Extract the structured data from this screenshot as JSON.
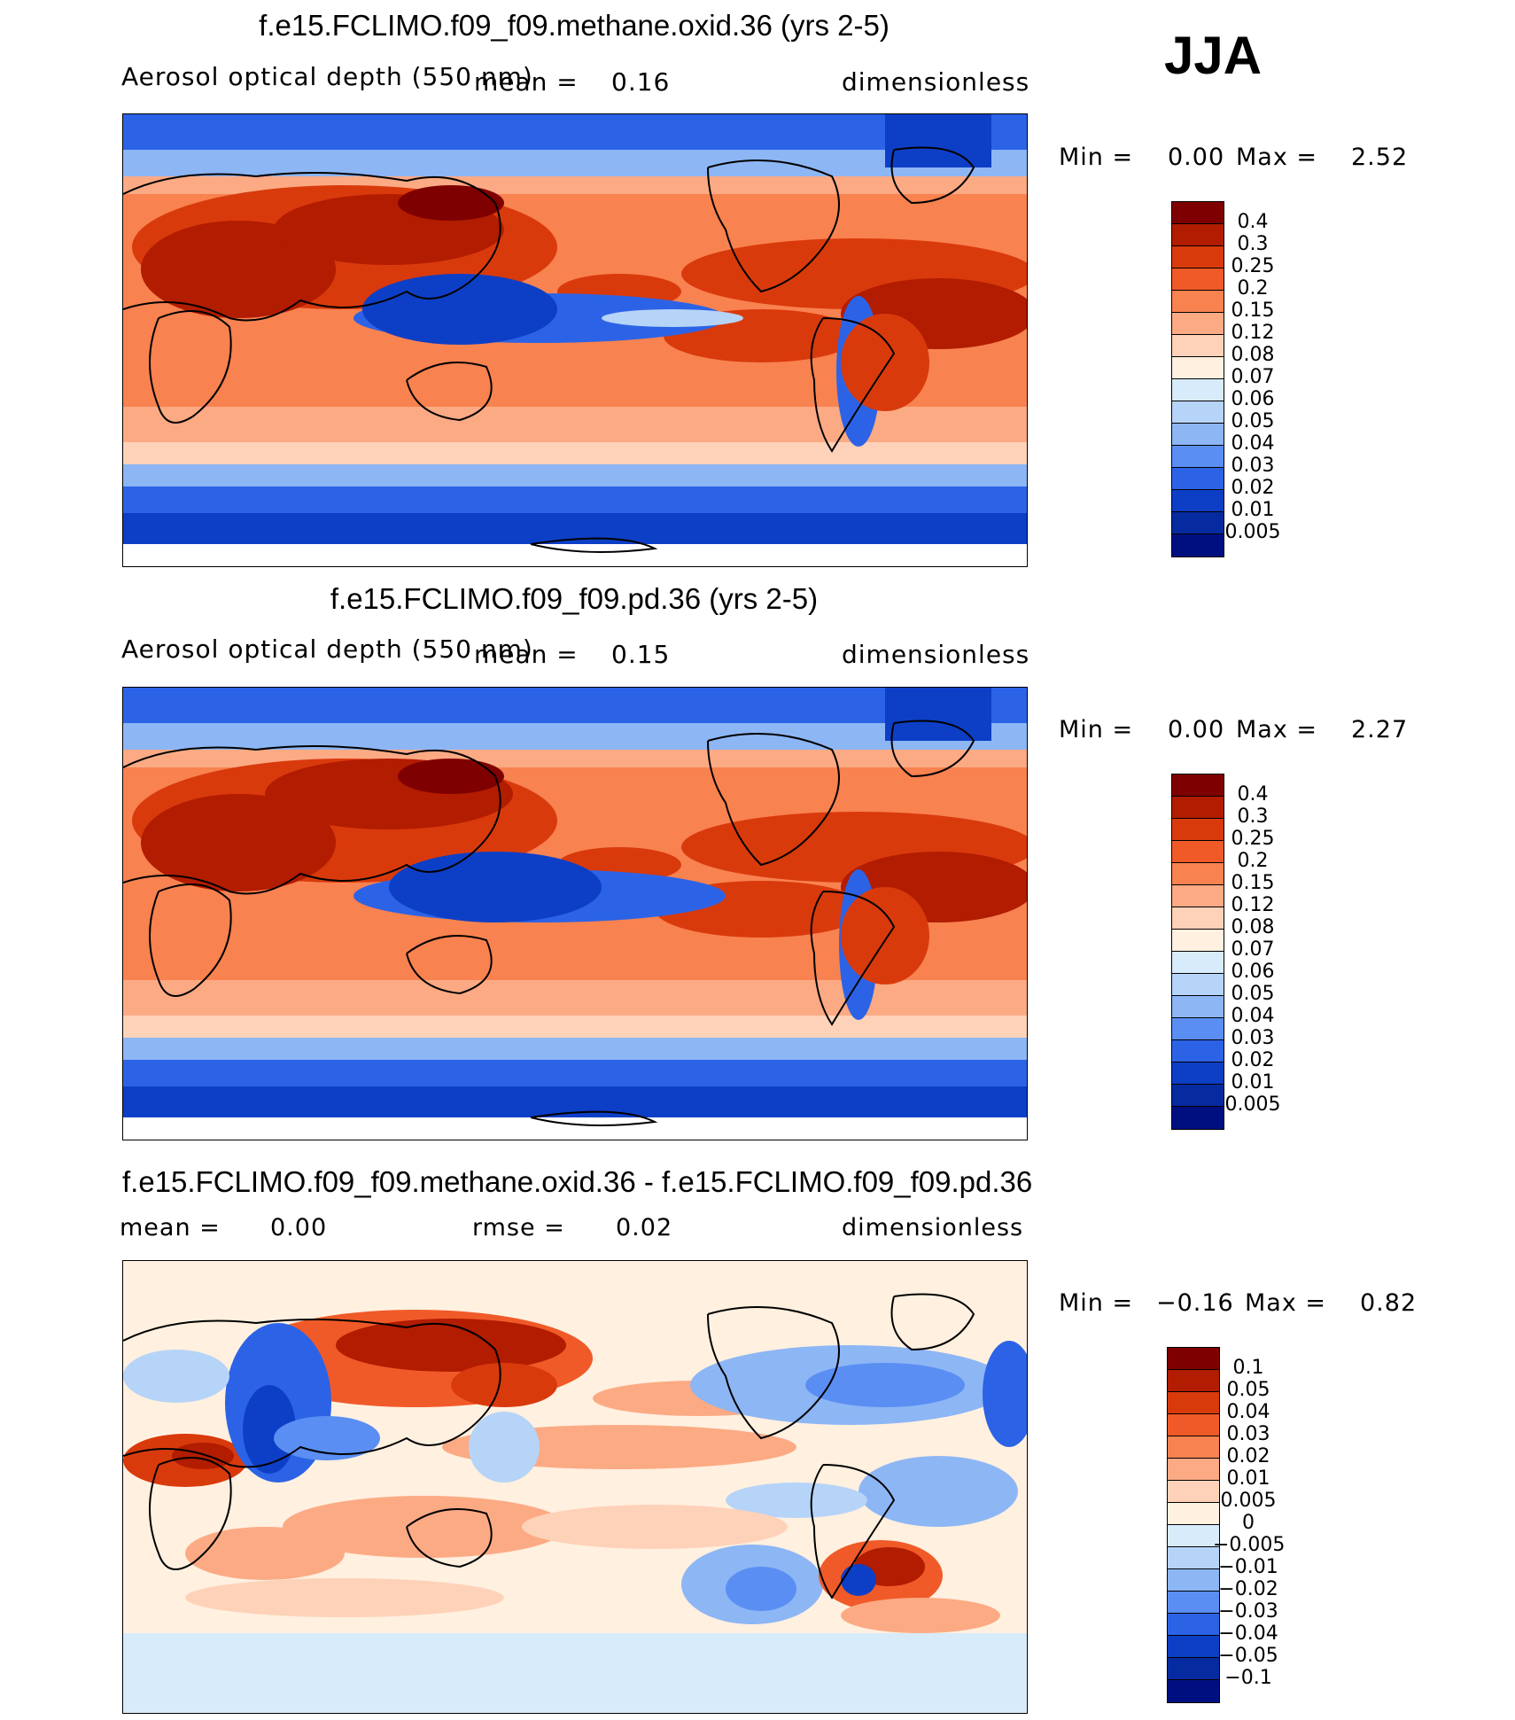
{
  "season": "JJA",
  "panels": [
    {
      "title": "f.e15.FCLIMO.f09_f09.methane.oxid.36 (yrs 2-5)",
      "variable": "Aerosol optical depth (550 nm)",
      "mean_label": "mean =",
      "mean_value": "0.16",
      "units": "dimensionless",
      "min_label": "Min =",
      "min_value": "0.00",
      "max_label": "Max =",
      "max_value": "2.52",
      "colorbar": [
        "0.4",
        "0.3",
        "0.25",
        "0.2",
        "0.15",
        "0.12",
        "0.08",
        "0.07",
        "0.06",
        "0.05",
        "0.04",
        "0.03",
        "0.02",
        "0.01",
        "0.005"
      ],
      "colors": [
        "#7f0000",
        "#b21c00",
        "#d93a0c",
        "#f05a28",
        "#f88250",
        "#fcaa84",
        "#fed2b8",
        "#fff0e0",
        "#d8ebfb",
        "#b6d4f8",
        "#8db6f5",
        "#5a8ef2",
        "#2c63e6",
        "#0d3fc6",
        "#062aa0",
        "#000f80"
      ]
    },
    {
      "title": "f.e15.FCLIMO.f09_f09.pd.36 (yrs 2-5)",
      "variable": "Aerosol optical depth (550 nm)",
      "mean_label": "mean =",
      "mean_value": "0.15",
      "units": "dimensionless",
      "min_label": "Min =",
      "min_value": "0.00",
      "max_label": "Max =",
      "max_value": "2.27",
      "colorbar": [
        "0.4",
        "0.3",
        "0.25",
        "0.2",
        "0.15",
        "0.12",
        "0.08",
        "0.07",
        "0.06",
        "0.05",
        "0.04",
        "0.03",
        "0.02",
        "0.01",
        "0.005"
      ],
      "colors": [
        "#7f0000",
        "#b21c00",
        "#d93a0c",
        "#f05a28",
        "#f88250",
        "#fcaa84",
        "#fed2b8",
        "#fff0e0",
        "#d8ebfb",
        "#b6d4f8",
        "#8db6f5",
        "#5a8ef2",
        "#2c63e6",
        "#0d3fc6",
        "#062aa0",
        "#000f80"
      ]
    },
    {
      "title": "f.e15.FCLIMO.f09_f09.methane.oxid.36 - f.e15.FCLIMO.f09_f09.pd.36",
      "mean_label": "mean =",
      "mean_value": "0.00",
      "rmse_label": "rmse =",
      "rmse_value": "0.02",
      "units": "dimensionless",
      "min_label": "Min =",
      "min_value": "−0.16",
      "max_label": "Max =",
      "max_value": "0.82",
      "colorbar": [
        "0.1",
        "0.05",
        "0.04",
        "0.03",
        "0.02",
        "0.01",
        "0.005",
        "0",
        "−0.005",
        "−0.01",
        "−0.02",
        "−0.03",
        "−0.04",
        "−0.05",
        "−0.1"
      ],
      "colors": [
        "#7f0000",
        "#b21c00",
        "#d93a0c",
        "#f05a28",
        "#f88250",
        "#fcaa84",
        "#fed2b8",
        "#fff0e0",
        "#d8ebfb",
        "#b6d4f8",
        "#8db6f5",
        "#5a8ef2",
        "#2c63e6",
        "#0d3fc6",
        "#062aa0",
        "#000f80"
      ]
    }
  ]
}
